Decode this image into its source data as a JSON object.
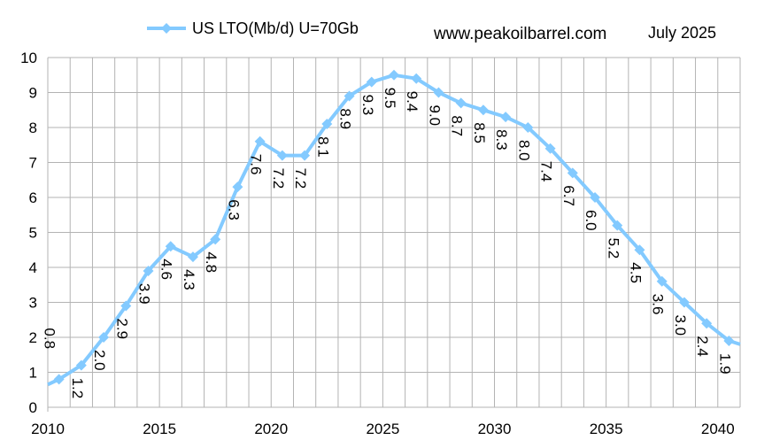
{
  "chart_data": {
    "type": "line",
    "title": "",
    "xlabel": "",
    "ylabel": "",
    "xlim": [
      2010,
      2041
    ],
    "ylim": [
      0,
      10
    ],
    "x_ticks": [
      2010,
      2015,
      2020,
      2025,
      2030,
      2035,
      2040
    ],
    "y_ticks": [
      0,
      1,
      2,
      3,
      4,
      5,
      6,
      7,
      8,
      9,
      10
    ],
    "grid": true,
    "legend": "top-left",
    "series": [
      {
        "name": "US LTO(Mb/d) U=70Gb",
        "color": "#83CAFF",
        "marker": "diamond",
        "x": [
          2010.0,
          2010.5,
          2011.5,
          2012.5,
          2013.5,
          2014.5,
          2015.5,
          2016.5,
          2017.5,
          2018.5,
          2019.5,
          2020.5,
          2021.5,
          2022.5,
          2023.5,
          2024.5,
          2025.5,
          2026.5,
          2027.5,
          2028.5,
          2029.5,
          2030.5,
          2031.5,
          2032.5,
          2033.5,
          2034.5,
          2035.5,
          2036.5,
          2037.5,
          2038.5,
          2039.5,
          2040.5,
          2041.0
        ],
        "y": [
          0.65,
          0.8,
          1.2,
          2.0,
          2.9,
          3.9,
          4.6,
          4.3,
          4.8,
          6.3,
          7.6,
          7.2,
          7.2,
          8.1,
          8.9,
          9.3,
          9.5,
          9.4,
          9.0,
          8.7,
          8.5,
          8.3,
          8.0,
          7.4,
          6.7,
          6.0,
          5.2,
          4.5,
          3.6,
          3.0,
          2.4,
          1.9,
          1.8
        ],
        "markers_x": [
          2010.5,
          2011.5,
          2012.5,
          2013.5,
          2014.5,
          2015.5,
          2016.5,
          2017.5,
          2018.5,
          2019.5,
          2020.5,
          2021.5,
          2022.5,
          2023.5,
          2024.5,
          2025.5,
          2026.5,
          2027.5,
          2028.5,
          2029.5,
          2030.5,
          2031.5,
          2032.5,
          2033.5,
          2034.5,
          2035.5,
          2036.5,
          2037.5,
          2038.5,
          2039.5,
          2040.5
        ],
        "markers_y": [
          0.8,
          1.2,
          2.0,
          2.9,
          3.9,
          4.6,
          4.3,
          4.8,
          6.3,
          7.6,
          7.2,
          7.2,
          8.1,
          8.9,
          9.3,
          9.5,
          9.4,
          9.0,
          8.7,
          8.5,
          8.3,
          8.0,
          7.4,
          6.7,
          6.0,
          5.2,
          4.5,
          3.6,
          3.0,
          2.4,
          1.9
        ]
      }
    ],
    "data_labels": [
      "0.8",
      "1.2",
      "2.0",
      "2.9",
      "3.9",
      "4.6",
      "4.3",
      "4.8",
      "6.3",
      "7.6",
      "7.2",
      "7.2",
      "8.1",
      "8.9",
      "9.3",
      "9.5",
      "9.4",
      "9.0",
      "8.7",
      "8.5",
      "8.3",
      "8.0",
      "7.4",
      "6.7",
      "6.0",
      "5.2",
      "4.5",
      "3.6",
      "3.0",
      "2.4",
      "1.9"
    ],
    "annotations": {
      "site": "www.peakoilbarrel.com",
      "date": "July 2025"
    }
  }
}
